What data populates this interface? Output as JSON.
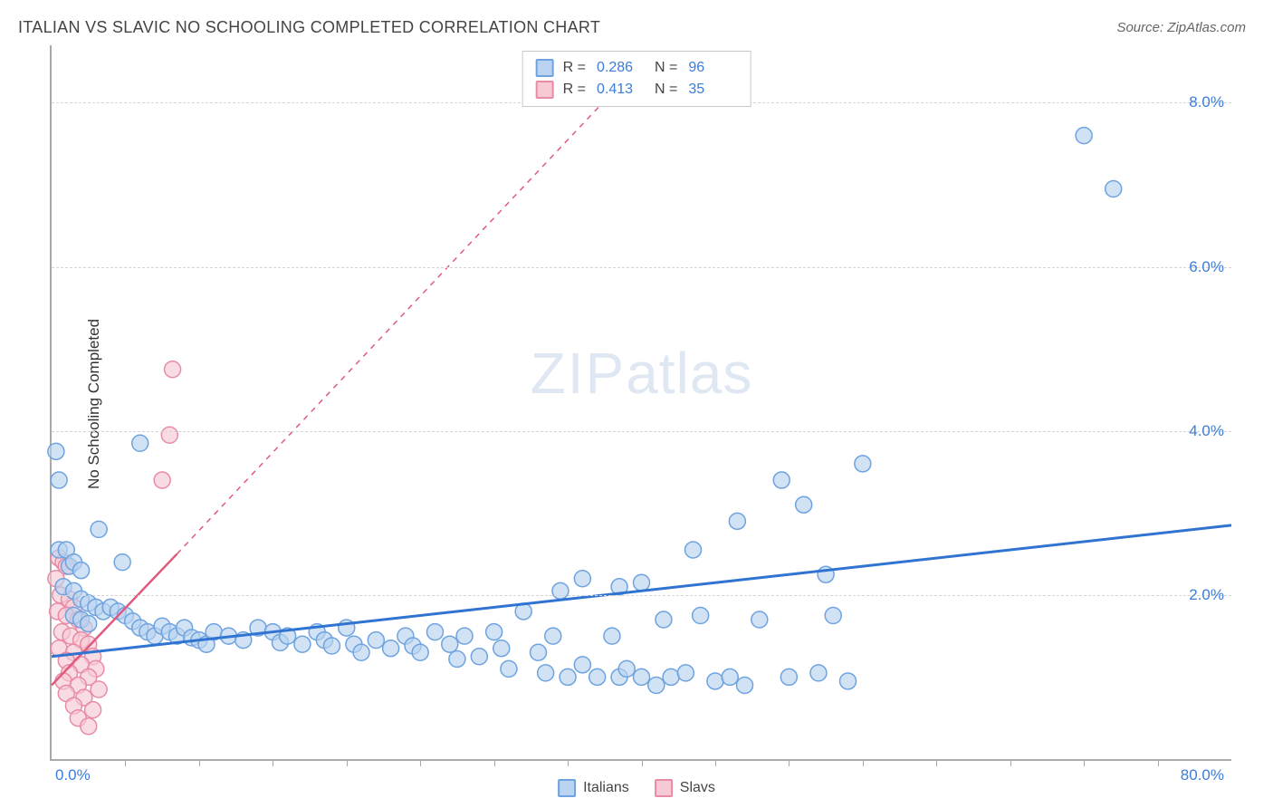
{
  "title": "ITALIAN VS SLAVIC NO SCHOOLING COMPLETED CORRELATION CHART",
  "source": "Source: ZipAtlas.com",
  "ylabel": "No Schooling Completed",
  "watermark_a": "ZIP",
  "watermark_b": "atlas",
  "chart": {
    "type": "scatter",
    "xlim": [
      0,
      80
    ],
    "ylim": [
      0,
      8.7
    ],
    "xtick_min": "0.0%",
    "xtick_max": "80.0%",
    "xtick_positions": [
      5,
      10,
      15,
      20,
      25,
      30,
      35,
      40,
      45,
      50,
      55,
      60,
      65,
      70,
      75
    ],
    "ytick_labels": [
      "2.0%",
      "4.0%",
      "6.0%",
      "8.0%"
    ],
    "ytick_values": [
      2,
      4,
      6,
      8
    ],
    "grid_color": "#d5d5d5",
    "axis_color": "#aaaaaa",
    "background_color": "#ffffff",
    "marker_radius": 9,
    "marker_stroke_width": 1.5,
    "series": [
      {
        "name": "Italians",
        "fill": "#b9d3f0",
        "stroke": "#6ea3e0",
        "line_color": "#2f74d0",
        "line_width": 3,
        "R": "0.286",
        "N": "96",
        "regression_solid_x": [
          0,
          80
        ],
        "regression_solid_y": [
          1.25,
          2.85
        ],
        "points": [
          [
            0.3,
            3.75
          ],
          [
            0.5,
            3.4
          ],
          [
            0.5,
            2.55
          ],
          [
            1,
            2.55
          ],
          [
            1.2,
            2.35
          ],
          [
            1.5,
            2.4
          ],
          [
            2,
            2.3
          ],
          [
            0.8,
            2.1
          ],
          [
            1.5,
            2.05
          ],
          [
            2,
            1.95
          ],
          [
            2.5,
            1.9
          ],
          [
            3,
            1.85
          ],
          [
            3.5,
            1.8
          ],
          [
            1.5,
            1.75
          ],
          [
            2,
            1.7
          ],
          [
            2.5,
            1.65
          ],
          [
            4,
            1.85
          ],
          [
            4.5,
            1.8
          ],
          [
            5,
            1.75
          ],
          [
            5.5,
            1.68
          ],
          [
            6,
            1.6
          ],
          [
            6.5,
            1.55
          ],
          [
            7,
            1.5
          ],
          [
            7.5,
            1.62
          ],
          [
            8,
            1.55
          ],
          [
            8.5,
            1.5
          ],
          [
            9,
            1.6
          ],
          [
            9.5,
            1.48
          ],
          [
            10,
            1.45
          ],
          [
            10.5,
            1.4
          ],
          [
            11,
            1.55
          ],
          [
            12,
            1.5
          ],
          [
            13,
            1.45
          ],
          [
            14,
            1.6
          ],
          [
            15,
            1.55
          ],
          [
            15.5,
            1.42
          ],
          [
            16,
            1.5
          ],
          [
            17,
            1.4
          ],
          [
            18,
            1.55
          ],
          [
            18.5,
            1.45
          ],
          [
            19,
            1.38
          ],
          [
            20,
            1.6
          ],
          [
            20.5,
            1.4
          ],
          [
            21,
            1.3
          ],
          [
            22,
            1.45
          ],
          [
            23,
            1.35
          ],
          [
            24,
            1.5
          ],
          [
            24.5,
            1.38
          ],
          [
            25,
            1.3
          ],
          [
            26,
            1.55
          ],
          [
            27,
            1.4
          ],
          [
            27.5,
            1.22
          ],
          [
            28,
            1.5
          ],
          [
            29,
            1.25
          ],
          [
            30,
            1.55
          ],
          [
            30.5,
            1.35
          ],
          [
            31,
            1.1
          ],
          [
            32,
            1.8
          ],
          [
            33,
            1.3
          ],
          [
            33.5,
            1.05
          ],
          [
            34,
            1.5
          ],
          [
            34.5,
            2.05
          ],
          [
            35,
            1.0
          ],
          [
            36,
            2.2
          ],
          [
            36,
            1.15
          ],
          [
            37,
            1.0
          ],
          [
            38,
            1.5
          ],
          [
            38.5,
            1.0
          ],
          [
            38.5,
            2.1
          ],
          [
            39,
            1.1
          ],
          [
            40,
            1.0
          ],
          [
            40,
            2.15
          ],
          [
            41,
            0.9
          ],
          [
            41.5,
            1.7
          ],
          [
            42,
            1.0
          ],
          [
            43,
            1.05
          ],
          [
            43.5,
            2.55
          ],
          [
            44,
            1.75
          ],
          [
            45,
            0.95
          ],
          [
            46,
            1.0
          ],
          [
            46.5,
            2.9
          ],
          [
            47,
            0.9
          ],
          [
            48,
            1.7
          ],
          [
            49.5,
            3.4
          ],
          [
            50,
            1.0
          ],
          [
            51,
            3.1
          ],
          [
            52,
            1.05
          ],
          [
            52.5,
            2.25
          ],
          [
            53,
            1.75
          ],
          [
            54,
            0.95
          ],
          [
            55,
            3.6
          ],
          [
            70,
            7.6
          ],
          [
            72,
            6.95
          ],
          [
            6,
            3.85
          ],
          [
            3.2,
            2.8
          ],
          [
            4.8,
            2.4
          ]
        ]
      },
      {
        "name": "Slavs",
        "fill": "#f6c9d4",
        "stroke": "#e88ba5",
        "line_color": "#e05a7e",
        "line_width": 2.5,
        "R": "0.413",
        "N": "35",
        "regression_solid_x": [
          0,
          8.5
        ],
        "regression_solid_y": [
          0.9,
          2.5
        ],
        "regression_dashed_x": [
          8.5,
          40
        ],
        "regression_dashed_y": [
          2.5,
          8.5
        ],
        "points": [
          [
            0.5,
            2.45
          ],
          [
            0.8,
            2.4
          ],
          [
            1,
            2.35
          ],
          [
            0.3,
            2.2
          ],
          [
            0.6,
            2.0
          ],
          [
            1.2,
            1.95
          ],
          [
            1.5,
            1.85
          ],
          [
            0.4,
            1.8
          ],
          [
            1,
            1.75
          ],
          [
            1.8,
            1.7
          ],
          [
            2.2,
            1.6
          ],
          [
            0.7,
            1.55
          ],
          [
            1.3,
            1.5
          ],
          [
            2,
            1.45
          ],
          [
            2.5,
            1.4
          ],
          [
            0.5,
            1.35
          ],
          [
            1.5,
            1.3
          ],
          [
            2.8,
            1.25
          ],
          [
            1,
            1.2
          ],
          [
            2,
            1.15
          ],
          [
            3,
            1.1
          ],
          [
            1.2,
            1.05
          ],
          [
            2.5,
            1.0
          ],
          [
            0.8,
            0.95
          ],
          [
            1.8,
            0.9
          ],
          [
            3.2,
            0.85
          ],
          [
            1,
            0.8
          ],
          [
            2.2,
            0.75
          ],
          [
            1.5,
            0.65
          ],
          [
            2.8,
            0.6
          ],
          [
            1.8,
            0.5
          ],
          [
            2.5,
            0.4
          ],
          [
            7.5,
            3.4
          ],
          [
            8,
            3.95
          ],
          [
            8.2,
            4.75
          ]
        ]
      }
    ]
  },
  "legend_bottom": {
    "s1_label": "Italians",
    "s2_label": "Slavs"
  },
  "legend_top_labels": {
    "R": "R =",
    "N": "N ="
  }
}
